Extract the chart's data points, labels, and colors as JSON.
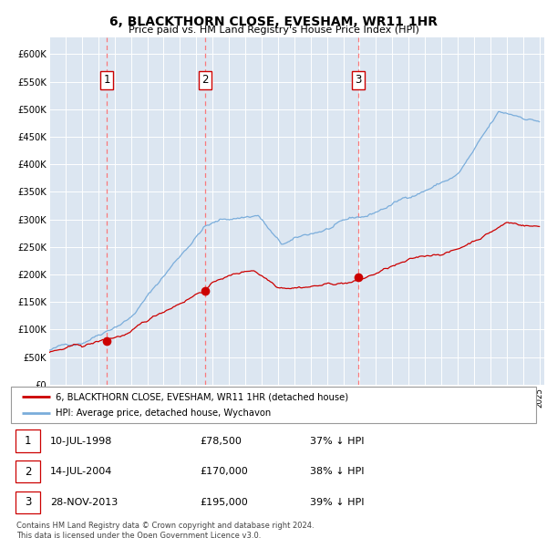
{
  "title": "6, BLACKTHORN CLOSE, EVESHAM, WR11 1HR",
  "subtitle": "Price paid vs. HM Land Registry's House Price Index (HPI)",
  "background_color": "#dce6f1",
  "plot_bg_color": "#dce6f1",
  "x_start_year": 1995,
  "x_end_year": 2025,
  "y_ticks": [
    0,
    50000,
    100000,
    150000,
    200000,
    250000,
    300000,
    350000,
    400000,
    450000,
    500000,
    550000,
    600000
  ],
  "y_tick_labels": [
    "£0",
    "£50K",
    "£100K",
    "£150K",
    "£200K",
    "£250K",
    "£300K",
    "£350K",
    "£400K",
    "£450K",
    "£500K",
    "£550K",
    "£600K"
  ],
  "hpi_color": "#7aaddb",
  "price_color": "#cc0000",
  "marker_color": "#cc0000",
  "vline_color": "#ff6666",
  "sale_years": [
    1998.53,
    2004.54,
    2013.91
  ],
  "sale_prices": [
    78500,
    170000,
    195000
  ],
  "legend_label_price": "6, BLACKTHORN CLOSE, EVESHAM, WR11 1HR (detached house)",
  "legend_label_hpi": "HPI: Average price, detached house, Wychavon",
  "table_entries": [
    {
      "num": "1",
      "date": "10-JUL-1998",
      "price": "£78,500",
      "pct": "37% ↓ HPI"
    },
    {
      "num": "2",
      "date": "14-JUL-2004",
      "price": "£170,000",
      "pct": "38% ↓ HPI"
    },
    {
      "num": "3",
      "date": "28-NOV-2013",
      "price": "£195,000",
      "pct": "39% ↓ HPI"
    }
  ],
  "footnote1": "Contains HM Land Registry data © Crown copyright and database right 2024.",
  "footnote2": "This data is licensed under the Open Government Licence v3.0."
}
